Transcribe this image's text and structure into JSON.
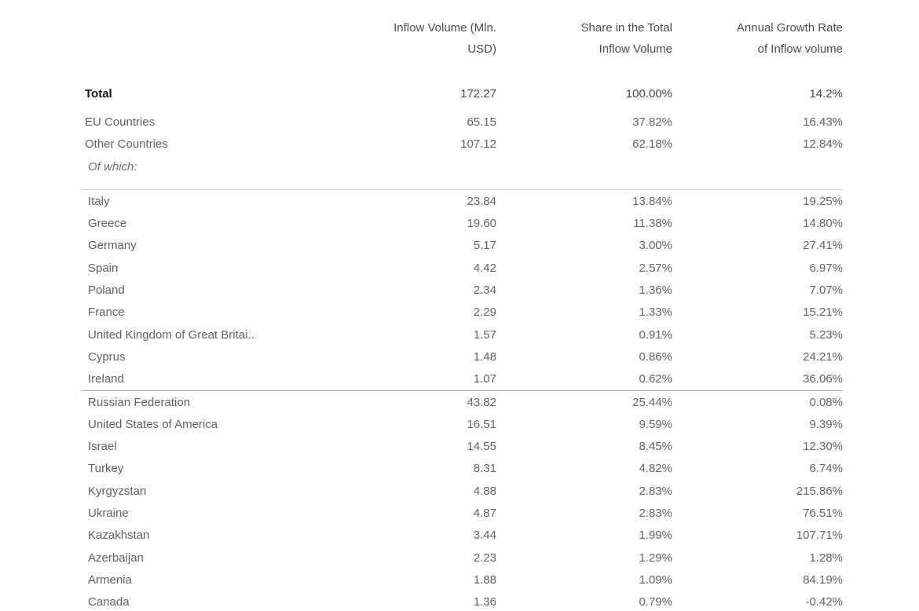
{
  "table": {
    "headers": [
      {
        "line1": "Inflow Volume (Mln.",
        "line2": "USD)"
      },
      {
        "line1": "Share in the Total",
        "line2": "Inflow Volume"
      },
      {
        "line1": "Annual Growth Rate",
        "line2": "of Inflow volume"
      }
    ],
    "groups": {
      "summary": [
        {
          "label": "Total",
          "volume": "172.27",
          "share": "100.00%",
          "growth": "14.2%",
          "style": "total"
        },
        {
          "label": "EU Countries",
          "volume": "65.15",
          "share": "37.82%",
          "growth": "16.43%",
          "style": "group"
        },
        {
          "label": "Other Countries",
          "volume": "107.12",
          "share": "62.18%",
          "growth": "12.84%",
          "style": "group"
        },
        {
          "label": "Of which:",
          "volume": "",
          "share": "",
          "growth": "",
          "style": "ofwhich"
        }
      ],
      "eu": [
        {
          "label": "Italy",
          "volume": "23.84",
          "share": "13.84%",
          "growth": "19.25%",
          "style": ""
        },
        {
          "label": "Greece",
          "volume": "19.60",
          "share": "11.38%",
          "growth": "14.80%",
          "style": ""
        },
        {
          "label": "Germany",
          "volume": "5.17",
          "share": "3.00%",
          "growth": "27.41%",
          "style": ""
        },
        {
          "label": "Spain",
          "volume": "4.42",
          "share": "2.57%",
          "growth": "6.97%",
          "style": ""
        },
        {
          "label": "Poland",
          "volume": "2.34",
          "share": "1.36%",
          "growth": "7.07%",
          "style": ""
        },
        {
          "label": "France",
          "volume": "2.29",
          "share": "1.33%",
          "growth": "15.21%",
          "style": ""
        },
        {
          "label": "United Kingdom of Great Britai..",
          "volume": "1.57",
          "share": "0.91%",
          "growth": "5.23%",
          "style": ""
        },
        {
          "label": "Cyprus",
          "volume": "1.48",
          "share": "0.86%",
          "growth": "24.21%",
          "style": ""
        },
        {
          "label": "Ireland",
          "volume": "1.07",
          "share": "0.62%",
          "growth": "36.06%",
          "style": ""
        }
      ],
      "other": [
        {
          "label": "Russian Federation",
          "volume": "43.82",
          "share": "25.44%",
          "growth": "0.08%",
          "style": ""
        },
        {
          "label": "United States of America",
          "volume": "16.51",
          "share": "9.59%",
          "growth": "9.39%",
          "style": ""
        },
        {
          "label": "Israel",
          "volume": "14.55",
          "share": "8.45%",
          "growth": "12.30%",
          "style": ""
        },
        {
          "label": "Turkey",
          "volume": "8.31",
          "share": "4.82%",
          "growth": "6.74%",
          "style": ""
        },
        {
          "label": "Kyrgyzstan",
          "volume": "4.88",
          "share": "2.83%",
          "growth": "215.86%",
          "style": ""
        },
        {
          "label": "Ukraine",
          "volume": "4.87",
          "share": "2.83%",
          "growth": "76.51%",
          "style": ""
        },
        {
          "label": "Kazakhstan",
          "volume": "3.44",
          "share": "1.99%",
          "growth": "107.71%",
          "style": ""
        },
        {
          "label": "Azerbaijan",
          "volume": "2.23",
          "share": "1.29%",
          "growth": "1.28%",
          "style": ""
        },
        {
          "label": "Armenia",
          "volume": "1.88",
          "share": "1.09%",
          "growth": "84.19%",
          "style": ""
        },
        {
          "label": "Canada",
          "volume": "1.36",
          "share": "0.79%",
          "growth": "-0.42%",
          "style": ""
        }
      ]
    }
  },
  "chart_data": {
    "type": "table",
    "title": "",
    "columns": [
      "",
      "Inflow Volume (Mln. USD)",
      "Share in the Total Inflow Volume",
      "Annual Growth Rate of Inflow volume"
    ],
    "rows": [
      {
        "label": "Total",
        "inflow_volume_mln_usd": 172.27,
        "share_pct": 100.0,
        "annual_growth_pct": 14.2
      },
      {
        "label": "EU Countries",
        "inflow_volume_mln_usd": 65.15,
        "share_pct": 37.82,
        "annual_growth_pct": 16.43
      },
      {
        "label": "Other Countries",
        "inflow_volume_mln_usd": 107.12,
        "share_pct": 62.18,
        "annual_growth_pct": 12.84
      },
      {
        "label": "Italy",
        "inflow_volume_mln_usd": 23.84,
        "share_pct": 13.84,
        "annual_growth_pct": 19.25,
        "group": "EU"
      },
      {
        "label": "Greece",
        "inflow_volume_mln_usd": 19.6,
        "share_pct": 11.38,
        "annual_growth_pct": 14.8,
        "group": "EU"
      },
      {
        "label": "Germany",
        "inflow_volume_mln_usd": 5.17,
        "share_pct": 3.0,
        "annual_growth_pct": 27.41,
        "group": "EU"
      },
      {
        "label": "Spain",
        "inflow_volume_mln_usd": 4.42,
        "share_pct": 2.57,
        "annual_growth_pct": 6.97,
        "group": "EU"
      },
      {
        "label": "Poland",
        "inflow_volume_mln_usd": 2.34,
        "share_pct": 1.36,
        "annual_growth_pct": 7.07,
        "group": "EU"
      },
      {
        "label": "France",
        "inflow_volume_mln_usd": 2.29,
        "share_pct": 1.33,
        "annual_growth_pct": 15.21,
        "group": "EU"
      },
      {
        "label": "United Kingdom of Great Britai..",
        "inflow_volume_mln_usd": 1.57,
        "share_pct": 0.91,
        "annual_growth_pct": 5.23,
        "group": "EU"
      },
      {
        "label": "Cyprus",
        "inflow_volume_mln_usd": 1.48,
        "share_pct": 0.86,
        "annual_growth_pct": 24.21,
        "group": "EU"
      },
      {
        "label": "Ireland",
        "inflow_volume_mln_usd": 1.07,
        "share_pct": 0.62,
        "annual_growth_pct": 36.06,
        "group": "EU"
      },
      {
        "label": "Russian Federation",
        "inflow_volume_mln_usd": 43.82,
        "share_pct": 25.44,
        "annual_growth_pct": 0.08,
        "group": "Other"
      },
      {
        "label": "United States of America",
        "inflow_volume_mln_usd": 16.51,
        "share_pct": 9.59,
        "annual_growth_pct": 9.39,
        "group": "Other"
      },
      {
        "label": "Israel",
        "inflow_volume_mln_usd": 14.55,
        "share_pct": 8.45,
        "annual_growth_pct": 12.3,
        "group": "Other"
      },
      {
        "label": "Turkey",
        "inflow_volume_mln_usd": 8.31,
        "share_pct": 4.82,
        "annual_growth_pct": 6.74,
        "group": "Other"
      },
      {
        "label": "Kyrgyzstan",
        "inflow_volume_mln_usd": 4.88,
        "share_pct": 2.83,
        "annual_growth_pct": 215.86,
        "group": "Other"
      },
      {
        "label": "Ukraine",
        "inflow_volume_mln_usd": 4.87,
        "share_pct": 2.83,
        "annual_growth_pct": 76.51,
        "group": "Other"
      },
      {
        "label": "Kazakhstan",
        "inflow_volume_mln_usd": 3.44,
        "share_pct": 1.99,
        "annual_growth_pct": 107.71,
        "group": "Other"
      },
      {
        "label": "Azerbaijan",
        "inflow_volume_mln_usd": 2.23,
        "share_pct": 1.29,
        "annual_growth_pct": 1.28,
        "group": "Other"
      },
      {
        "label": "Armenia",
        "inflow_volume_mln_usd": 1.88,
        "share_pct": 1.09,
        "annual_growth_pct": 84.19,
        "group": "Other"
      },
      {
        "label": "Canada",
        "inflow_volume_mln_usd": 1.36,
        "share_pct": 0.79,
        "annual_growth_pct": -0.42,
        "group": "Other"
      }
    ],
    "layout": {
      "grid": false,
      "column_alignment": [
        "left",
        "right",
        "right",
        "right"
      ]
    }
  }
}
